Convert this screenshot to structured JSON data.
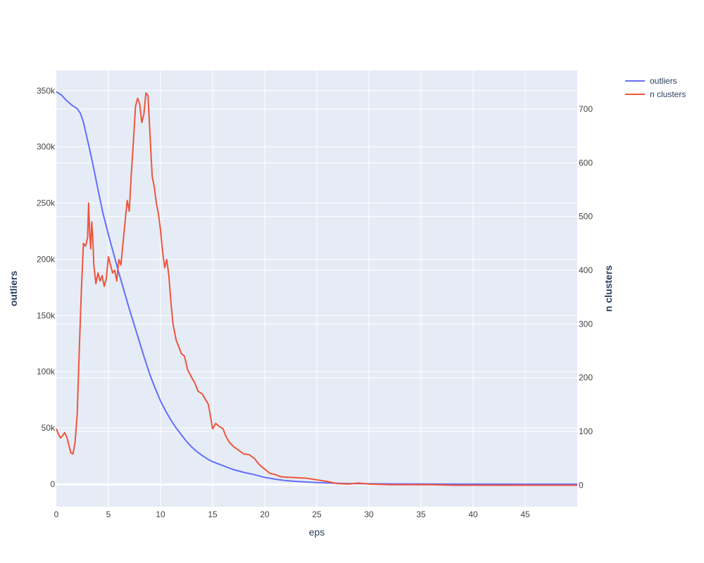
{
  "chart_data": {
    "type": "line",
    "title": "",
    "xlabel": "eps",
    "ylabel": "outliers",
    "y2label": "n clusters",
    "xlim": [
      0,
      50
    ],
    "ylim": [
      -20000,
      368000
    ],
    "y2lim": [
      -40,
      772
    ],
    "x_ticks": [
      0,
      5,
      10,
      15,
      20,
      25,
      30,
      35,
      40,
      45
    ],
    "y_ticks": [
      0,
      50000,
      100000,
      150000,
      200000,
      250000,
      300000,
      350000
    ],
    "y_tick_labels": [
      "0",
      "50k",
      "100k",
      "150k",
      "200k",
      "250k",
      "300k",
      "350k"
    ],
    "y2_ticks": [
      0,
      100,
      200,
      300,
      400,
      500,
      600,
      700
    ],
    "grid": true,
    "legend_position": "top-right",
    "colors": {
      "outliers": "#636efa",
      "n_clusters": "#ef553b",
      "plot_bg": "#e5ecf6",
      "grid": "#ffffff"
    },
    "series": [
      {
        "name": "outliers",
        "axis": "y",
        "x": [
          0,
          0.5,
          1,
          1.5,
          2,
          2.3,
          2.6,
          3,
          3.5,
          4,
          4.5,
          5,
          5.5,
          6,
          6.5,
          7,
          7.5,
          8,
          8.5,
          9,
          9.5,
          10,
          10.5,
          11,
          11.5,
          12,
          12.5,
          13,
          13.5,
          14,
          14.5,
          15,
          16,
          17,
          18,
          19,
          20,
          21,
          22,
          23,
          24,
          25,
          26,
          27,
          28,
          30,
          32,
          35,
          40,
          45,
          50
        ],
        "values": [
          349000,
          346000,
          341000,
          337000,
          334000,
          330000,
          322000,
          306000,
          285000,
          262000,
          240000,
          222000,
          205000,
          188000,
          172000,
          156000,
          141000,
          126000,
          111000,
          97000,
          85000,
          74000,
          65000,
          57000,
          50000,
          44000,
          38000,
          33000,
          29000,
          25500,
          22500,
          20000,
          16500,
          13000,
          10500,
          8500,
          6000,
          4500,
          3200,
          2500,
          2000,
          1500,
          1100,
          800,
          600,
          400,
          250,
          150,
          80,
          40,
          20
        ]
      },
      {
        "name": "n clusters",
        "axis": "y2",
        "x": [
          0,
          0.2,
          0.4,
          0.6,
          0.8,
          1.0,
          1.2,
          1.4,
          1.6,
          1.8,
          2.0,
          2.2,
          2.4,
          2.6,
          2.8,
          3.0,
          3.1,
          3.2,
          3.3,
          3.4,
          3.5,
          3.6,
          3.8,
          4.0,
          4.2,
          4.4,
          4.6,
          4.8,
          5.0,
          5.2,
          5.4,
          5.6,
          5.8,
          6.0,
          6.2,
          6.4,
          6.6,
          6.8,
          7.0,
          7.2,
          7.4,
          7.6,
          7.8,
          8.0,
          8.2,
          8.4,
          8.6,
          8.8,
          9.0,
          9.2,
          9.4,
          9.6,
          9.8,
          10.0,
          10.2,
          10.4,
          10.6,
          10.8,
          11.0,
          11.2,
          11.5,
          11.8,
          12.0,
          12.3,
          12.6,
          13.0,
          13.3,
          13.6,
          14.0,
          14.3,
          14.6,
          15.0,
          15.3,
          15.6,
          16.0,
          16.3,
          16.6,
          17.0,
          17.5,
          18.0,
          18.5,
          19.0,
          19.5,
          20.0,
          20.5,
          21.0,
          21.5,
          22.0,
          23.0,
          24.0,
          25.0,
          26.0,
          27.0,
          28.0,
          29.0,
          30.0,
          32.0,
          34.0,
          36.0,
          38.0,
          40.0,
          45.0,
          50.0
        ],
        "values": [
          105,
          95,
          88,
          92,
          98,
          90,
          75,
          60,
          58,
          80,
          130,
          250,
          360,
          450,
          445,
          460,
          525,
          470,
          440,
          490,
          460,
          410,
          375,
          395,
          380,
          390,
          370,
          385,
          425,
          410,
          395,
          400,
          380,
          420,
          410,
          450,
          490,
          530,
          510,
          580,
          640,
          705,
          720,
          710,
          675,
          690,
          730,
          725,
          650,
          575,
          555,
          525,
          505,
          475,
          435,
          405,
          420,
          390,
          340,
          300,
          270,
          255,
          245,
          240,
          215,
          200,
          190,
          175,
          170,
          160,
          150,
          105,
          115,
          110,
          105,
          90,
          80,
          72,
          65,
          58,
          57,
          50,
          38,
          30,
          22,
          20,
          16,
          15,
          14,
          13,
          10,
          7,
          3,
          2,
          4,
          2,
          1,
          1,
          1,
          0,
          0,
          0,
          0
        ]
      }
    ]
  }
}
